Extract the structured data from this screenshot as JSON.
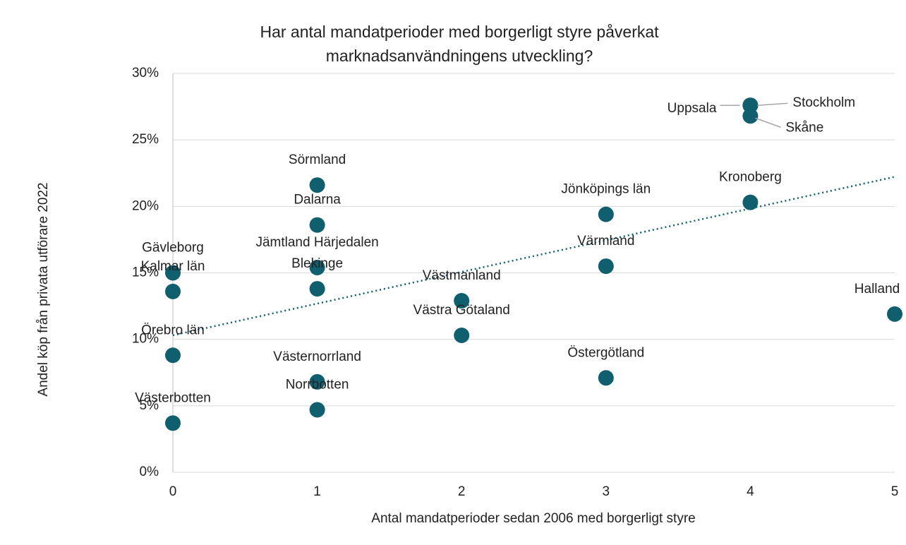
{
  "chart_data": {
    "type": "scatter",
    "title": [
      "Har antal mandatperioder med borgerligt styre påverkat",
      "marknadsanvändningens utveckling?"
    ],
    "xlabel": "Antal mandatperioder sedan 2006 med borgerligt styre",
    "ylabel": "Andel köp från privata utförare 2022",
    "labels": [
      "Gävleborg",
      "Kalmar län",
      "Örebro län",
      "Västerbotten",
      "Sörmland",
      "Dalarna",
      "Jämtland Härjedalen",
      "Blekinge",
      "Västernorrland",
      "Norrbotten",
      "Västmanland",
      "Västra Götaland",
      "Jönköpings län",
      "Värmland",
      "Östergötland",
      "Uppsala",
      "Stockholm",
      "Skåne",
      "Kronoberg",
      "Halland"
    ],
    "x": [
      0,
      0,
      0,
      0,
      1,
      1,
      1,
      1,
      1,
      1,
      2,
      2,
      3,
      3,
      3,
      4,
      4,
      4,
      4,
      5
    ],
    "values": [
      15.0,
      13.6,
      8.8,
      3.7,
      21.6,
      18.6,
      15.4,
      13.8,
      6.8,
      4.7,
      12.9,
      10.3,
      19.4,
      15.5,
      7.1,
      27.6,
      27.6,
      26.8,
      20.3,
      11.9
    ],
    "color": "#0f5f6e",
    "trendline": "linear",
    "xlim": [
      0,
      5
    ],
    "xticks": [
      0,
      1,
      2,
      3,
      4,
      5
    ],
    "ylim": [
      0,
      30
    ],
    "yticks": [
      {
        "value": 0,
        "label": "0%"
      },
      {
        "value": 5,
        "label": "5%"
      },
      {
        "value": 10,
        "label": "10%"
      },
      {
        "value": 15,
        "label": "15%"
      },
      {
        "value": 20,
        "label": "20%"
      },
      {
        "value": 25,
        "label": "25%"
      },
      {
        "value": 30,
        "label": "30%"
      }
    ],
    "grid": true
  }
}
